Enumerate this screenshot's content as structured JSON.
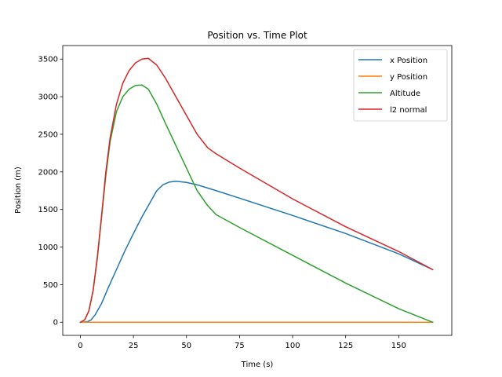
{
  "chart_data": {
    "type": "line",
    "title": "Position vs. Time Plot",
    "xlabel": "Time (s)",
    "ylabel": "Position (m)",
    "xlim": [
      -8.3,
      175
    ],
    "ylim": [
      -175,
      3680
    ],
    "xticks": [
      0,
      25,
      50,
      75,
      100,
      125,
      150
    ],
    "yticks": [
      0,
      500,
      1000,
      1500,
      2000,
      2500,
      3000,
      3500
    ],
    "grid": false,
    "legend_position": "top-right",
    "series": [
      {
        "name": "x Position",
        "color": "#1f77b4",
        "points": [
          [
            0,
            0
          ],
          [
            3,
            5
          ],
          [
            5,
            30
          ],
          [
            7,
            100
          ],
          [
            10,
            250
          ],
          [
            13,
            450
          ],
          [
            17,
            700
          ],
          [
            21,
            950
          ],
          [
            25,
            1180
          ],
          [
            29,
            1400
          ],
          [
            33,
            1600
          ],
          [
            36,
            1750
          ],
          [
            39,
            1830
          ],
          [
            42,
            1865
          ],
          [
            45,
            1875
          ],
          [
            50,
            1860
          ],
          [
            56,
            1820
          ],
          [
            64,
            1750
          ],
          [
            75,
            1650
          ],
          [
            100,
            1420
          ],
          [
            125,
            1180
          ],
          [
            150,
            910
          ],
          [
            166,
            700
          ]
        ]
      },
      {
        "name": "y Position",
        "color": "#ff7f0e",
        "points": [
          [
            0,
            0
          ],
          [
            30,
            0
          ],
          [
            75,
            0
          ],
          [
            125,
            0
          ],
          [
            166,
            0
          ]
        ]
      },
      {
        "name": "Altitude",
        "color": "#2ca02c",
        "points": [
          [
            0,
            0
          ],
          [
            2,
            30
          ],
          [
            4,
            150
          ],
          [
            6,
            420
          ],
          [
            8,
            850
          ],
          [
            10,
            1400
          ],
          [
            12,
            1950
          ],
          [
            14,
            2400
          ],
          [
            17,
            2800
          ],
          [
            20,
            3000
          ],
          [
            23,
            3100
          ],
          [
            26,
            3150
          ],
          [
            29,
            3155
          ],
          [
            32,
            3100
          ],
          [
            36,
            2900
          ],
          [
            40,
            2650
          ],
          [
            45,
            2350
          ],
          [
            50,
            2050
          ],
          [
            55,
            1750
          ],
          [
            60,
            1550
          ],
          [
            64,
            1430
          ],
          [
            75,
            1260
          ],
          [
            100,
            890
          ],
          [
            125,
            520
          ],
          [
            150,
            180
          ],
          [
            166,
            0
          ]
        ]
      },
      {
        "name": "l2 normal",
        "color": "#d62728",
        "points": [
          [
            0,
            0
          ],
          [
            2,
            30
          ],
          [
            4,
            150
          ],
          [
            6,
            420
          ],
          [
            8,
            870
          ],
          [
            10,
            1420
          ],
          [
            12,
            2000
          ],
          [
            14,
            2450
          ],
          [
            17,
            2900
          ],
          [
            20,
            3180
          ],
          [
            23,
            3350
          ],
          [
            26,
            3450
          ],
          [
            29,
            3500
          ],
          [
            32,
            3510
          ],
          [
            36,
            3420
          ],
          [
            40,
            3250
          ],
          [
            45,
            3000
          ],
          [
            50,
            2750
          ],
          [
            55,
            2500
          ],
          [
            60,
            2320
          ],
          [
            64,
            2240
          ],
          [
            75,
            2050
          ],
          [
            100,
            1640
          ],
          [
            125,
            1270
          ],
          [
            150,
            940
          ],
          [
            166,
            700
          ]
        ]
      }
    ]
  }
}
